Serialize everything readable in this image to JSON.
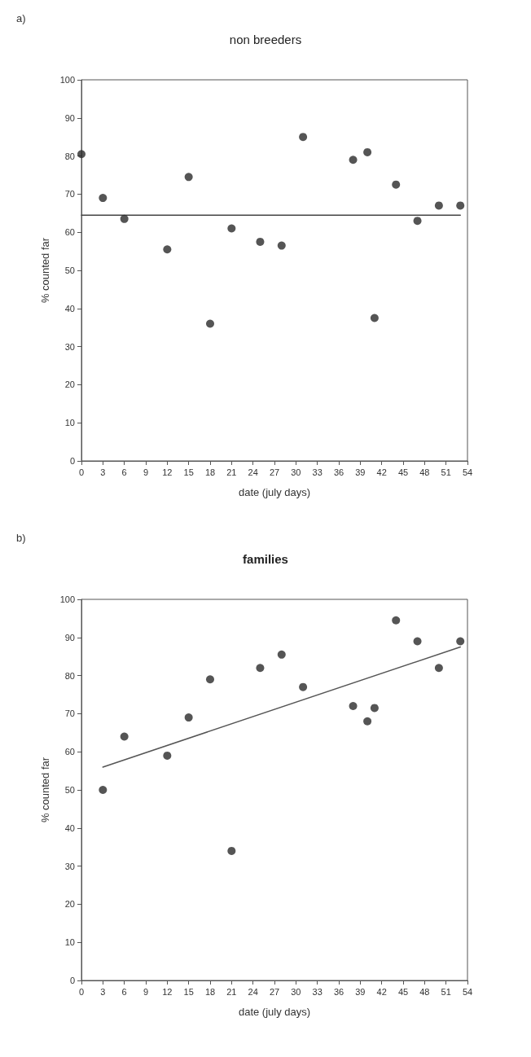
{
  "chart_data": [
    {
      "type": "scatter",
      "title": "non breeders",
      "xlabel": "date (july days)",
      "ylabel": "% counted far",
      "annotations": [
        "a)"
      ],
      "xlim": [
        0,
        54
      ],
      "xticks": [
        0,
        3,
        6,
        9,
        12,
        15,
        18,
        21,
        24,
        27,
        30,
        33,
        36,
        39,
        42,
        45,
        48,
        51,
        54
      ],
      "ylim": [
        0,
        100
      ],
      "yticks": [
        0,
        10,
        20,
        30,
        40,
        50,
        60,
        70,
        80,
        90,
        100
      ],
      "series": [
        {
          "marker": "circle",
          "color": "#2b2b2b",
          "x": [
            0,
            3,
            6,
            12,
            15,
            18,
            21,
            25,
            28,
            31,
            38,
            40,
            41,
            44,
            47,
            50,
            53
          ],
          "values": [
            80.5,
            69,
            63.5,
            55.5,
            74.5,
            36,
            61,
            57.5,
            56.5,
            85,
            79,
            81,
            37.5,
            72.5,
            63,
            67,
            67
          ]
        },
        {
          "type": "line",
          "marker": "none",
          "color": "#444444",
          "x": [
            0,
            53
          ],
          "values": [
            64.5,
            64.5
          ]
        }
      ]
    },
    {
      "type": "scatter",
      "title": "families",
      "xlabel": "date (july days)",
      "ylabel": "% counted far",
      "annotations": [
        "b)"
      ],
      "xlim": [
        0,
        54
      ],
      "xticks": [
        0,
        3,
        6,
        9,
        12,
        15,
        18,
        21,
        24,
        27,
        30,
        33,
        36,
        39,
        42,
        45,
        48,
        51,
        54
      ],
      "ylim": [
        0,
        100
      ],
      "yticks": [
        0,
        10,
        20,
        30,
        40,
        50,
        60,
        70,
        80,
        90,
        100
      ],
      "series": [
        {
          "marker": "circle",
          "color": "#2b2b2b",
          "x": [
            3,
            6,
            12,
            15,
            18,
            21,
            25,
            28,
            31,
            38,
            40,
            41,
            44,
            47,
            50,
            53
          ],
          "values": [
            50,
            64,
            59,
            69,
            79,
            34,
            82,
            85.5,
            77,
            72,
            68,
            71.5,
            94.5,
            89,
            82,
            89
          ]
        },
        {
          "type": "line",
          "marker": "none",
          "color": "#555555",
          "x": [
            3,
            53
          ],
          "values": [
            56,
            87.5
          ]
        }
      ]
    }
  ]
}
